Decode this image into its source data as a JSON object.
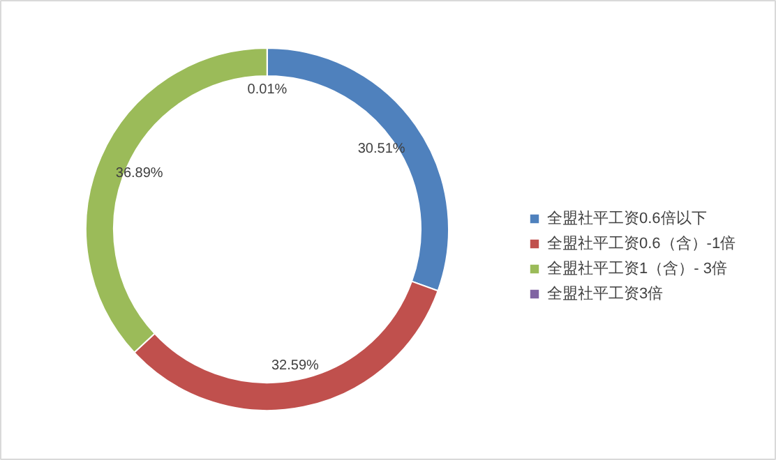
{
  "chart_data": {
    "type": "donut",
    "categories": [
      "全盟社平工资0.6倍以下",
      "全盟社平工资0.6（含）-1倍",
      "全盟社平工资1（含）- 3倍",
      "全盟社平工资3倍"
    ],
    "values": [
      30.51,
      32.59,
      36.89,
      0.01
    ],
    "colors": [
      "#4f81bd",
      "#c0504d",
      "#9bbb59",
      "#8064a2"
    ],
    "value_labels": [
      "30.51%",
      "32.59%",
      "36.89%",
      "0.01%"
    ],
    "legend": "right"
  }
}
